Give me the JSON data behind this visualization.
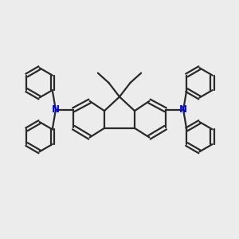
{
  "background_color": "#ececec",
  "bond_color": "#2a2a2a",
  "N_color": "#0000ee",
  "bond_lw": 1.6,
  "fig_w": 3.0,
  "fig_h": 3.0,
  "dpi": 100,
  "xlim": [
    -2.2,
    2.2
  ],
  "ylim": [
    -1.55,
    1.55
  ]
}
